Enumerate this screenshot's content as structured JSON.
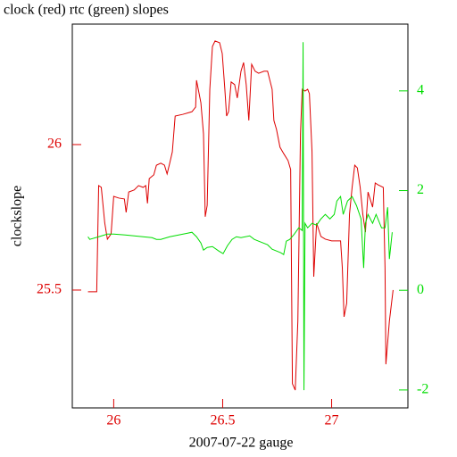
{
  "chart_data": {
    "type": "line",
    "title": "clock (red) rtc (green) slopes",
    "x_label": "2007-07-22 gauge",
    "y_label": "clockslope",
    "xlim": [
      25.81,
      27.35
    ],
    "xticks": [
      26,
      26.5,
      27
    ],
    "ylim": [
      25.095,
      26.414
    ],
    "yticks": [
      25.5,
      26
    ],
    "y2lim": [
      -2.36,
      5.34
    ],
    "y2ticks": [
      -2,
      0,
      2,
      4
    ],
    "y_color": "#dd0000",
    "y2_color": "#00dd00",
    "x_color": "#dd0000",
    "series": [
      {
        "color": "#dd0000",
        "axis": "y",
        "x": [
          25.882,
          25.922,
          25.931,
          25.943,
          25.959,
          25.971,
          25.988,
          26.0,
          26.024,
          26.049,
          26.057,
          26.069,
          26.094,
          26.114,
          26.135,
          26.147,
          26.155,
          26.163,
          26.184,
          26.196,
          26.216,
          26.233,
          26.245,
          26.257,
          26.269,
          26.282,
          26.318,
          26.359,
          26.376,
          26.38,
          26.4,
          26.412,
          26.42,
          26.429,
          26.441,
          26.453,
          26.465,
          26.486,
          26.498,
          26.51,
          26.518,
          26.527,
          26.539,
          26.555,
          26.567,
          26.584,
          26.596,
          26.608,
          26.62,
          26.633,
          26.649,
          26.665,
          26.69,
          26.706,
          26.727,
          26.735,
          26.747,
          26.763,
          26.78,
          26.8,
          26.812,
          26.82,
          26.833,
          26.845,
          26.857,
          26.865,
          26.878,
          26.89,
          26.898,
          26.91,
          26.918,
          26.931,
          26.951,
          26.971,
          27.0,
          27.041,
          27.049,
          27.057,
          27.069,
          27.082,
          27.094,
          27.106,
          27.118,
          27.131,
          27.143,
          27.155,
          27.167,
          27.188,
          27.2,
          27.212,
          27.237,
          27.245,
          27.249,
          27.265,
          27.282
        ],
        "values": [
          25.494,
          25.494,
          25.859,
          25.853,
          25.73,
          25.675,
          25.693,
          25.822,
          25.816,
          25.813,
          25.767,
          25.837,
          25.844,
          25.859,
          25.853,
          25.859,
          25.798,
          25.883,
          25.896,
          25.929,
          25.936,
          25.929,
          25.899,
          25.936,
          25.975,
          26.098,
          26.104,
          26.113,
          26.129,
          26.221,
          26.144,
          26.037,
          25.752,
          25.791,
          26.19,
          26.337,
          26.356,
          26.35,
          26.313,
          26.19,
          26.098,
          26.113,
          26.215,
          26.206,
          26.16,
          26.252,
          26.282,
          26.206,
          26.083,
          26.276,
          26.252,
          26.245,
          26.252,
          26.252,
          26.19,
          26.083,
          26.052,
          25.991,
          25.969,
          25.945,
          25.914,
          25.178,
          25.156,
          25.393,
          26.037,
          26.19,
          26.184,
          26.19,
          26.175,
          25.975,
          25.546,
          25.73,
          25.684,
          25.675,
          25.669,
          25.669,
          25.577,
          25.408,
          25.454,
          25.761,
          25.853,
          25.929,
          25.92,
          25.853,
          25.761,
          25.699,
          25.837,
          25.785,
          25.868,
          25.862,
          25.853,
          25.577,
          25.245,
          25.393,
          25.5
        ]
      },
      {
        "color": "#00dd00",
        "axis": "y2",
        "x": [
          25.882,
          25.89,
          25.931,
          25.971,
          26.0,
          26.053,
          26.094,
          26.135,
          26.176,
          26.196,
          26.216,
          26.257,
          26.298,
          26.339,
          26.359,
          26.38,
          26.4,
          26.412,
          26.429,
          26.453,
          26.482,
          26.502,
          26.522,
          26.543,
          26.563,
          26.584,
          26.624,
          26.645,
          26.665,
          26.706,
          26.727,
          26.747,
          26.767,
          26.78,
          26.792,
          26.808,
          26.829,
          26.849,
          26.865,
          26.869,
          26.873,
          26.878,
          26.89,
          26.91,
          26.931,
          26.951,
          26.971,
          26.992,
          27.012,
          27.024,
          27.041,
          27.053,
          27.073,
          27.094,
          27.114,
          27.135,
          27.147,
          27.155,
          27.167,
          27.188,
          27.204,
          27.229,
          27.245,
          27.257,
          27.265,
          27.278
        ],
        "values": [
          1.074,
          1.021,
          1.074,
          1.128,
          1.128,
          1.11,
          1.092,
          1.074,
          1.056,
          1.021,
          1.021,
          1.074,
          1.11,
          1.146,
          1.164,
          1.074,
          0.949,
          0.806,
          0.859,
          0.877,
          0.788,
          0.734,
          0.895,
          1.021,
          1.074,
          1.056,
          1.092,
          1.021,
          0.985,
          0.913,
          0.824,
          0.788,
          0.752,
          0.716,
          0.985,
          1.021,
          1.128,
          1.253,
          1.2,
          4.978,
          -2.005,
          1.343,
          1.253,
          1.343,
          1.307,
          1.432,
          1.522,
          1.432,
          1.522,
          1.791,
          1.88,
          1.522,
          1.791,
          1.88,
          1.701,
          1.432,
          0.448,
          1.343,
          1.522,
          1.343,
          1.522,
          1.253,
          1.253,
          1.665,
          0.627,
          1.164
        ]
      }
    ]
  }
}
